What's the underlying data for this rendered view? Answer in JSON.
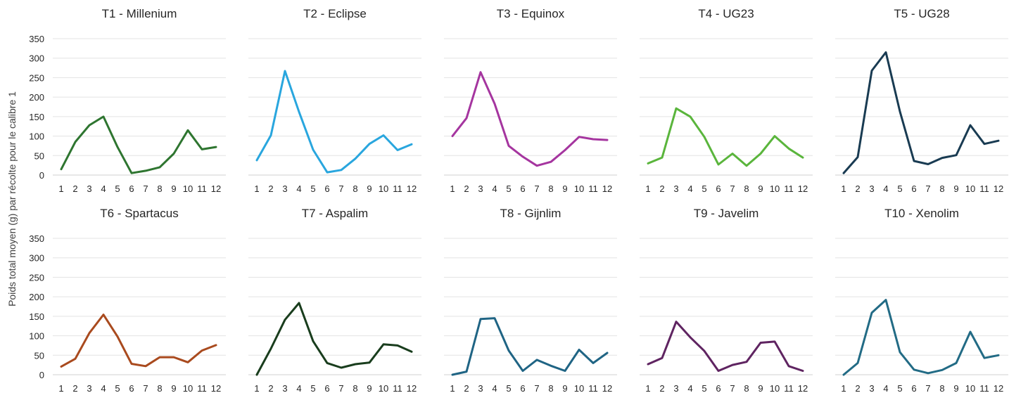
{
  "chart_data": {
    "type": "line",
    "ylabel": "Poids total moyen (g) par récolte pour le calibre 1",
    "ylim": [
      0,
      350
    ],
    "yticks": [
      0,
      50,
      100,
      150,
      200,
      250,
      300,
      350
    ],
    "categories": [
      "1",
      "2",
      "3",
      "4",
      "5",
      "6",
      "7",
      "8",
      "9",
      "10",
      "11",
      "12"
    ],
    "grid": true,
    "panels": [
      {
        "title": "T1 - Millenium",
        "color": "#2e7530",
        "values": [
          15,
          85,
          128,
          150,
          72,
          5,
          11,
          20,
          55,
          115,
          66,
          72
        ]
      },
      {
        "title": "T2 - Eclipse",
        "color": "#29a6de",
        "values": [
          38,
          102,
          267,
          162,
          65,
          7,
          13,
          42,
          80,
          102,
          64,
          79
        ]
      },
      {
        "title": "T3 - Equinox",
        "color": "#a5359f",
        "values": [
          100,
          146,
          264,
          183,
          75,
          47,
          24,
          34,
          64,
          98,
          92,
          90
        ]
      },
      {
        "title": "T4 - UG23",
        "color": "#5ab53c",
        "values": [
          30,
          45,
          171,
          150,
          98,
          27,
          55,
          24,
          55,
          100,
          68,
          45
        ]
      },
      {
        "title": "T5 - UG28",
        "color": "#193b52",
        "values": [
          5,
          46,
          268,
          315,
          163,
          36,
          28,
          44,
          51,
          128,
          80,
          88
        ]
      },
      {
        "title": "T6 - Spartacus",
        "color": "#a94a1e",
        "values": [
          21,
          41,
          107,
          154,
          98,
          28,
          22,
          45,
          45,
          32,
          62,
          76
        ]
      },
      {
        "title": "T7 - Aspalim",
        "color": "#193d1d",
        "values": [
          0,
          67,
          141,
          184,
          86,
          30,
          18,
          27,
          31,
          78,
          75,
          59
        ]
      },
      {
        "title": "T8 - Gijnlim",
        "color": "#1f6484",
        "values": [
          0,
          8,
          143,
          145,
          62,
          10,
          38,
          23,
          10,
          64,
          30,
          56
        ]
      },
      {
        "title": "T9 - Javelim",
        "color": "#5f2461",
        "values": [
          27,
          43,
          136,
          96,
          61,
          10,
          25,
          33,
          82,
          85,
          22,
          10
        ]
      },
      {
        "title": "T10 - Xenolim",
        "color": "#226b85",
        "values": [
          0,
          30,
          159,
          192,
          58,
          13,
          4,
          12,
          30,
          110,
          43,
          50
        ]
      }
    ]
  }
}
